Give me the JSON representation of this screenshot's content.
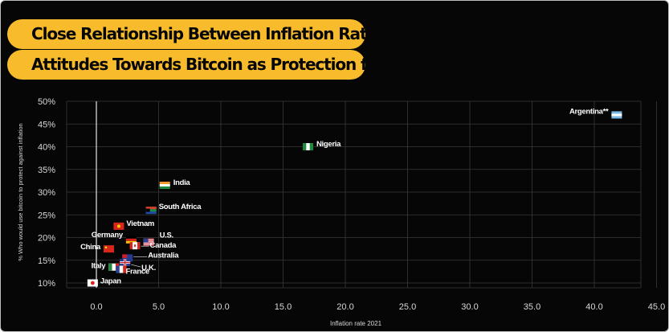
{
  "title_lines": [
    "Close Relationship Between Inflation Rates and",
    "Attitudes Towards Bitcoin as Protection from It"
  ],
  "colors": {
    "background": "#060606",
    "accent": "#f7bb2c",
    "grid": "#3a3a3a",
    "axis_text": "#d9d9d9"
  },
  "chart_data": {
    "type": "scatter",
    "xlabel": "Inflation rate 2021",
    "ylabel": "% Who would use bitcoin to protect against inflation",
    "xlim": [
      -2.5,
      45
    ],
    "ylim": [
      9,
      50
    ],
    "x_ticks": [
      0,
      5,
      10,
      15,
      20,
      25,
      30,
      35,
      40,
      45
    ],
    "x_tick_labels": [
      "0.0",
      "5.0",
      "10.0",
      "15.0",
      "20.0",
      "25.0",
      "30.0",
      "35.0",
      "40.0",
      "45.0"
    ],
    "y_ticks": [
      10,
      15,
      20,
      25,
      30,
      35,
      40,
      45,
      50
    ],
    "y_tick_labels": [
      "10%",
      "15%",
      "20%",
      "25%",
      "30%",
      "35%",
      "40%",
      "45%",
      "50%"
    ],
    "grid": true,
    "points": [
      {
        "label": "Argentina**",
        "x": 41.8,
        "y": 47,
        "flag": "argentina"
      },
      {
        "label": "Nigeria",
        "x": 17.0,
        "y": 40,
        "flag": "nigeria"
      },
      {
        "label": "India",
        "x": 5.5,
        "y": 31.5,
        "flag": "india"
      },
      {
        "label": "South Africa",
        "x": 4.4,
        "y": 26,
        "flag": "south-africa"
      },
      {
        "label": "Vietnam",
        "x": 1.8,
        "y": 22.5,
        "flag": "vietnam"
      },
      {
        "label": "Germany",
        "x": 2.8,
        "y": 19.5,
        "flag": "germany"
      },
      {
        "label": "U.S.",
        "x": 4.2,
        "y": 19,
        "flag": "us"
      },
      {
        "label": "Canada",
        "x": 3.1,
        "y": 18.2,
        "flag": "canada"
      },
      {
        "label": "China",
        "x": 1.0,
        "y": 17.5,
        "flag": "china"
      },
      {
        "label": "Australia",
        "x": 2.5,
        "y": 15.5,
        "flag": "australia"
      },
      {
        "label": "U.K.",
        "x": 2.3,
        "y": 14.5,
        "flag": "uk"
      },
      {
        "label": "Italy",
        "x": 1.4,
        "y": 13.5,
        "flag": "italy"
      },
      {
        "label": "France",
        "x": 2.0,
        "y": 13,
        "flag": "france"
      },
      {
        "label": "Japan",
        "x": -0.3,
        "y": 10,
        "flag": "japan"
      }
    ]
  }
}
